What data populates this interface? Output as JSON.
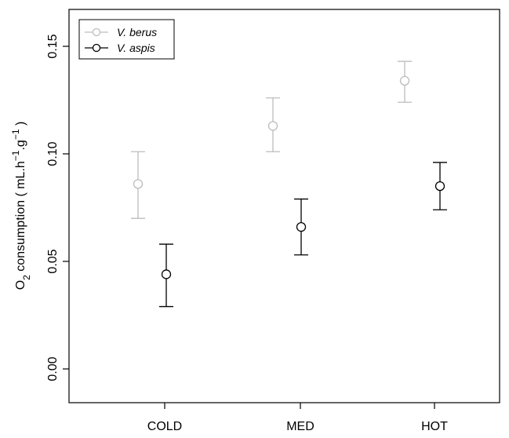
{
  "chart_data": {
    "type": "scatter",
    "categories": [
      "COLD",
      "MED",
      "HOT"
    ],
    "ylabel_prefix": "O",
    "ylabel_sub": "2",
    "ylabel_main": " consumption ( mL.h",
    "ylabel_sup1": "−1",
    "ylabel_mid": ".g",
    "ylabel_sup2": "−1",
    "ylabel_end": ")",
    "ylim": [
      -0.01,
      0.165
    ],
    "yticks": [
      {
        "value": 0.0,
        "label": "0.00"
      },
      {
        "value": 0.05,
        "label": "0.05"
      },
      {
        "value": 0.1,
        "label": "0.10"
      },
      {
        "value": 0.15,
        "label": "0.15"
      }
    ],
    "grid": false,
    "legend_position": "top-left",
    "series": [
      {
        "name": "V. berus",
        "color": "#bdbdbd",
        "values": [
          0.086,
          0.113,
          0.134
        ],
        "lower": [
          0.07,
          0.101,
          0.124
        ],
        "upper": [
          0.101,
          0.126,
          0.143
        ]
      },
      {
        "name": "V. aspis",
        "color": "#000000",
        "values": [
          0.044,
          0.066,
          0.085
        ],
        "lower": [
          0.029,
          0.053,
          0.074
        ],
        "upper": [
          0.058,
          0.079,
          0.096
        ]
      }
    ]
  }
}
